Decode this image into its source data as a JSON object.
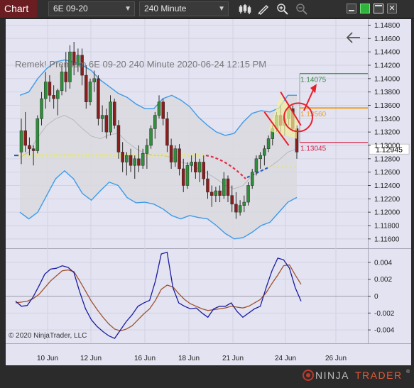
{
  "toolbar": {
    "tab_label": "Chart",
    "instrument": "6E 09-20",
    "interval": "240 Minute",
    "icons": [
      "bar-style-icon",
      "drawing-tool-pencil-icon",
      "zoom-in-icon",
      "zoom-out-icon"
    ],
    "window_icons": [
      "minimize-icon",
      "restore-icon",
      "maximize-icon",
      "close-icon"
    ]
  },
  "colors": {
    "price_panel_bg": "#e3e3f1",
    "bollinger_bands": "#3d9be9",
    "envelope_fill": "#d9d9de",
    "up_candle": "#2f8f3a",
    "down_candle": "#8b1d1d",
    "pivot_line": "#f5f500",
    "oscillator_fast": "#1c1ca0",
    "oscillator_slow": "#a0522d",
    "target_green": "#3c8c4a",
    "entry_orange": "#f0a020",
    "stop_red": "#d6284b"
  },
  "chart_data": [
    {
      "type": "candlestick",
      "title": "Remek!  Premium  6E 09-20  240 Minute  2020-06-24 12:15 PM",
      "y_axis": {
        "ylim": [
          1.1146,
          1.1489
        ],
        "ticks": [
          "1.14800",
          "1.14600",
          "1.14400",
          "1.14200",
          "1.14000",
          "1.13800",
          "1.13600",
          "1.13400",
          "1.13200",
          "1.13000",
          "1.12800",
          "1.12600",
          "1.12400",
          "1.12200",
          "1.12000",
          "1.11800",
          "1.11600"
        ]
      },
      "x_axis": {
        "ticks": [
          "10 Jun",
          "12 Jun",
          "16 Jun",
          "18 Jun",
          "21 Jun",
          "24 Jun",
          "26 Jun"
        ]
      },
      "grid": true,
      "candles": [
        [
          1.129,
          1.134,
          1.1272,
          1.1322
        ],
        [
          1.1322,
          1.135,
          1.129,
          1.13
        ],
        [
          1.13,
          1.1312,
          1.1285,
          1.1295
        ],
        [
          1.1295,
          1.13,
          1.127,
          1.1292
        ],
        [
          1.1292,
          1.1345,
          1.1288,
          1.134
        ],
        [
          1.134,
          1.138,
          1.133,
          1.137
        ],
        [
          1.137,
          1.141,
          1.1355,
          1.1395
        ],
        [
          1.1395,
          1.1405,
          1.1365,
          1.1375
        ],
        [
          1.1375,
          1.139,
          1.1355,
          1.137
        ],
        [
          1.137,
          1.1385,
          1.1345,
          1.1382
        ],
        [
          1.1382,
          1.142,
          1.1375,
          1.141
        ],
        [
          1.141,
          1.144,
          1.138,
          1.1395
        ],
        [
          1.1395,
          1.145,
          1.1385,
          1.144
        ],
        [
          1.144,
          1.1455,
          1.1405,
          1.142
        ],
        [
          1.142,
          1.1445,
          1.141,
          1.1435
        ],
        [
          1.1435,
          1.1445,
          1.139,
          1.1405
        ],
        [
          1.1405,
          1.142,
          1.1355,
          1.1365
        ],
        [
          1.1365,
          1.14,
          1.136,
          1.1395
        ],
        [
          1.1395,
          1.1412,
          1.138,
          1.14
        ],
        [
          1.14,
          1.1405,
          1.133,
          1.134
        ],
        [
          1.134,
          1.136,
          1.132,
          1.1345
        ],
        [
          1.1345,
          1.1355,
          1.131,
          1.132
        ],
        [
          1.132,
          1.1375,
          1.1315,
          1.1365
        ],
        [
          1.1365,
          1.137,
          1.1325,
          1.133
        ],
        [
          1.133,
          1.1338,
          1.128,
          1.129
        ],
        [
          1.129,
          1.1305,
          1.126,
          1.1275
        ],
        [
          1.1275,
          1.129,
          1.1255,
          1.1285
        ],
        [
          1.1285,
          1.1295,
          1.126,
          1.127
        ],
        [
          1.127,
          1.1285,
          1.125,
          1.128
        ],
        [
          1.128,
          1.13,
          1.126,
          1.127
        ],
        [
          1.127,
          1.1295,
          1.1265,
          1.1288
        ],
        [
          1.1288,
          1.131,
          1.1265,
          1.13
        ],
        [
          1.13,
          1.133,
          1.1295,
          1.1325
        ],
        [
          1.1325,
          1.135,
          1.131,
          1.1345
        ],
        [
          1.1345,
          1.1375,
          1.134,
          1.1365
        ],
        [
          1.1365,
          1.137,
          1.133,
          1.134
        ],
        [
          1.134,
          1.135,
          1.129,
          1.13
        ],
        [
          1.13,
          1.131,
          1.1265,
          1.1275
        ],
        [
          1.1275,
          1.13,
          1.1268,
          1.1295
        ],
        [
          1.1295,
          1.1302,
          1.1255,
          1.1265
        ],
        [
          1.1265,
          1.128,
          1.123,
          1.124
        ],
        [
          1.124,
          1.1275,
          1.1235,
          1.127
        ],
        [
          1.127,
          1.1285,
          1.126,
          1.1275
        ],
        [
          1.1275,
          1.1288,
          1.125,
          1.126
        ],
        [
          1.126,
          1.128,
          1.1245,
          1.1275
        ],
        [
          1.1275,
          1.1285,
          1.124,
          1.125
        ],
        [
          1.125,
          1.1262,
          1.122,
          1.123
        ],
        [
          1.123,
          1.124,
          1.1208,
          1.1225
        ],
        [
          1.1225,
          1.1238,
          1.1215,
          1.1232
        ],
        [
          1.1232,
          1.124,
          1.1215,
          1.1225
        ],
        [
          1.1225,
          1.126,
          1.122,
          1.125
        ],
        [
          1.125,
          1.1255,
          1.1215,
          1.1225
        ],
        [
          1.1225,
          1.124,
          1.12,
          1.1212
        ],
        [
          1.1212,
          1.123,
          1.119,
          1.12
        ],
        [
          1.12,
          1.1218,
          1.1195,
          1.121
        ],
        [
          1.121,
          1.1225,
          1.12,
          1.1215
        ],
        [
          1.1215,
          1.1245,
          1.121,
          1.124
        ],
        [
          1.124,
          1.1265,
          1.1235,
          1.126
        ],
        [
          1.126,
          1.1285,
          1.1255,
          1.128
        ],
        [
          1.128,
          1.129,
          1.1265,
          1.1285
        ],
        [
          1.1285,
          1.13,
          1.127,
          1.1295
        ],
        [
          1.1295,
          1.1315,
          1.129,
          1.131
        ],
        [
          1.131,
          1.133,
          1.13,
          1.1325
        ],
        [
          1.1325,
          1.135,
          1.132,
          1.1345
        ],
        [
          1.1345,
          1.136,
          1.132,
          1.133
        ],
        [
          1.133,
          1.135,
          1.1315,
          1.134
        ],
        [
          1.134,
          1.1362,
          1.133,
          1.1355
        ],
        [
          1.1355,
          1.136,
          1.132,
          1.1325
        ],
        [
          1.1325,
          1.133,
          1.128,
          1.129
        ]
      ],
      "series": [
        {
          "name": "",
          "values_upper": [
            1.1375,
            1.138,
            1.14,
            1.1415,
            1.1425,
            1.1428,
            1.1425,
            1.142,
            1.1412,
            1.1398,
            1.1388,
            1.1378,
            1.1372,
            1.1362,
            1.1355,
            1.1355,
            1.137,
            1.1375,
            1.1368,
            1.1358,
            1.1342,
            1.133,
            1.132,
            1.1315,
            1.1318,
            1.1335,
            1.1348,
            1.1352,
            1.135,
            1.1356,
            1.1375,
            1.1375
          ],
          "values_lower": [
            1.12,
            1.119,
            1.12,
            1.1225,
            1.125,
            1.1262,
            1.125,
            1.1228,
            1.1218,
            1.1232,
            1.1245,
            1.124,
            1.1222,
            1.1214,
            1.1215,
            1.1212,
            1.1205,
            1.1195,
            1.119,
            1.1195,
            1.1192,
            1.119,
            1.118,
            1.1168,
            1.116,
            1.1162,
            1.117,
            1.118,
            1.1185,
            1.12,
            1.1215,
            1.1222
          ]
        },
        {
          "name": "",
          "mid": [
            1.1282,
            1.129,
            1.1312,
            1.133,
            1.134,
            1.1345,
            1.1338,
            1.1325,
            1.1314,
            1.131,
            1.1316,
            1.1318,
            1.1305,
            1.1295,
            1.1288,
            1.1285,
            1.1285,
            1.1282,
            1.1275,
            1.1272,
            1.1265,
            1.1258,
            1.125,
            1.124,
            1.1235,
            1.124,
            1.1255,
            1.1262,
            1.1268,
            1.1278,
            1.129,
            1.1295
          ]
        },
        {
          "name": "",
          "pivot": 1.1285
        }
      ],
      "levels": [
        {
          "label": "1.14075",
          "value": 1.14075,
          "color": "#3c8c4a"
        },
        {
          "label": "1.13560",
          "value": 1.1356,
          "color": "#f0a020"
        },
        {
          "label": "1.13045",
          "value": 1.13045,
          "color": "#d6284b"
        }
      ],
      "current_price": "1.12945",
      "copyright": "© 2020 NinjaTrader, LLC"
    },
    {
      "type": "line",
      "y_axis": {
        "ticks": [
          "0.004",
          "0.002",
          "0",
          "-0.002",
          "-0.004"
        ],
        "ylim": [
          -0.0055,
          0.0055
        ]
      },
      "series": [
        {
          "name": "",
          "values": [
            -0.0006,
            -0.0012,
            -0.0011,
            -0.0001,
            0.0012,
            0.0026,
            0.0032,
            0.0033,
            0.0036,
            0.0034,
            0.0028,
            0.0005,
            -0.0015,
            -0.0028,
            -0.0036,
            -0.0042,
            -0.0047,
            -0.005,
            -0.004,
            -0.003,
            -0.0022,
            -0.0012,
            -0.0008,
            -0.0005,
            0.0018,
            0.005,
            0.0052,
            0.001,
            -0.0008,
            -0.0012,
            -0.0015,
            -0.0014,
            -0.002,
            -0.0025,
            -0.0015,
            -0.0012,
            -0.0012,
            -0.0008,
            -0.0018,
            -0.0025,
            -0.002,
            -0.0015,
            -0.0012,
            0.001,
            0.003,
            0.0045,
            0.0043,
            0.0033,
            0.001,
            -0.0006
          ]
        },
        {
          "name": "",
          "values": [
            -0.0008,
            -0.0007,
            -0.0006,
            -0.0003,
            0.0002,
            0.001,
            0.0018,
            0.0024,
            0.003,
            0.0031,
            0.0029,
            0.0018,
            0.0006,
            -0.0006,
            -0.0016,
            -0.0025,
            -0.0033,
            -0.0039,
            -0.0041,
            -0.0039,
            -0.0035,
            -0.0028,
            -0.0021,
            -0.0015,
            -0.0005,
            0.0008,
            0.0013,
            0.0011,
            0.0003,
            -0.0004,
            -0.0009,
            -0.0012,
            -0.0015,
            -0.0017,
            -0.0016,
            -0.0015,
            -0.0014,
            -0.0012,
            -0.0013,
            -0.0014,
            -0.0012,
            -0.0008,
            -0.0004,
            0.0004,
            0.0015,
            0.0025,
            0.0036,
            0.0037,
            0.0025,
            0.0014
          ]
        }
      ]
    }
  ],
  "footer": {
    "logo_text_left": "NINJA",
    "logo_text_right": "TRADER",
    "registered": "®"
  }
}
